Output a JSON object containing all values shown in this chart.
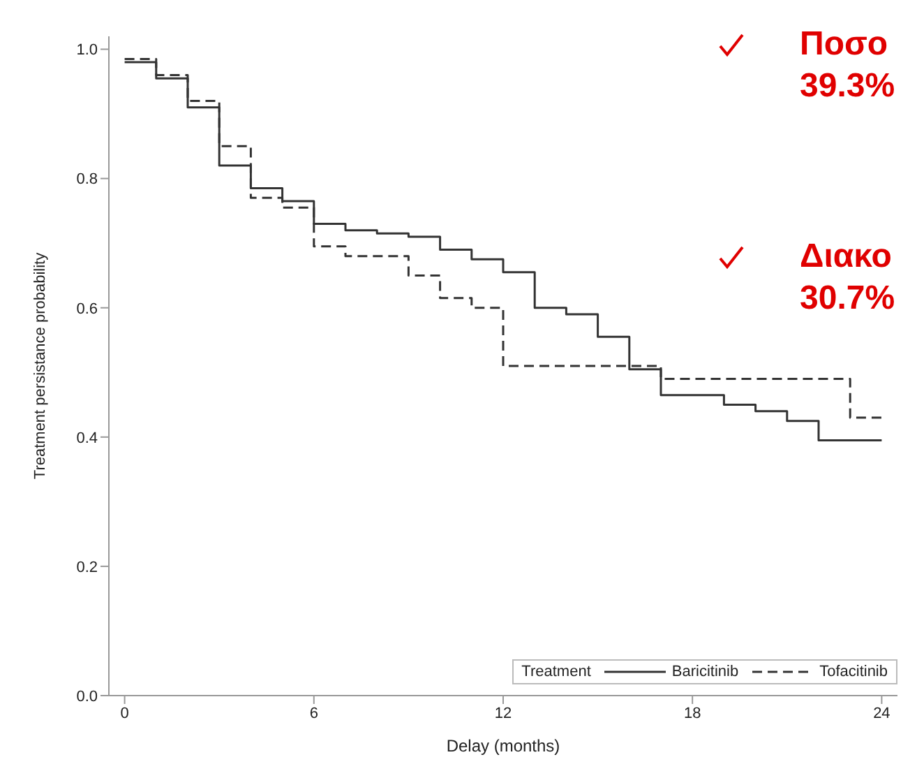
{
  "chart_data": {
    "type": "step",
    "xlabel": "Delay (months)",
    "ylabel": "Treatment persistance probability",
    "legend_title": "Treatment",
    "legend": "bottom right",
    "marker": "none",
    "x": [
      0,
      1,
      2,
      3,
      4,
      5,
      6,
      7,
      8,
      9,
      10,
      11,
      12,
      13,
      14,
      15,
      16,
      17,
      18,
      19,
      20,
      21,
      22,
      23,
      24
    ],
    "series": [
      {
        "name": "Baricitinib",
        "color": "#333333",
        "line_style": "solid",
        "values": [
          0.98,
          0.955,
          0.91,
          0.82,
          0.785,
          0.765,
          0.73,
          0.72,
          0.715,
          0.71,
          0.69,
          0.675,
          0.655,
          0.6,
          0.59,
          0.555,
          0.505,
          0.465,
          0.465,
          0.45,
          0.44,
          0.425,
          0.395,
          0.395,
          0.395
        ]
      },
      {
        "name": "Tofacitinib",
        "color": "#333333",
        "line_style": "dashed",
        "values": [
          0.985,
          0.96,
          0.92,
          0.85,
          0.77,
          0.755,
          0.695,
          0.68,
          0.68,
          0.65,
          0.615,
          0.6,
          0.51,
          0.51,
          0.51,
          0.51,
          0.51,
          0.49,
          0.49,
          0.49,
          0.49,
          0.49,
          0.49,
          0.43,
          0.43
        ]
      }
    ],
    "xlim": [
      -0.5,
      24.5
    ],
    "xticks": [
      0,
      6,
      12,
      18,
      24
    ],
    "ylim": [
      0,
      1.02
    ],
    "yticks": [
      {
        "value": 0,
        "label": "0.0"
      },
      {
        "value": 0.2,
        "label": "0.2"
      },
      {
        "value": 0.4,
        "label": "0.4"
      },
      {
        "value": 0.6,
        "label": "0.6"
      },
      {
        "value": 0.8,
        "label": "0.8"
      },
      {
        "value": 1,
        "label": "1.0"
      }
    ],
    "annotations": [
      "Ποσο",
      "39.3%",
      "Διακο",
      "30.7%"
    ]
  }
}
